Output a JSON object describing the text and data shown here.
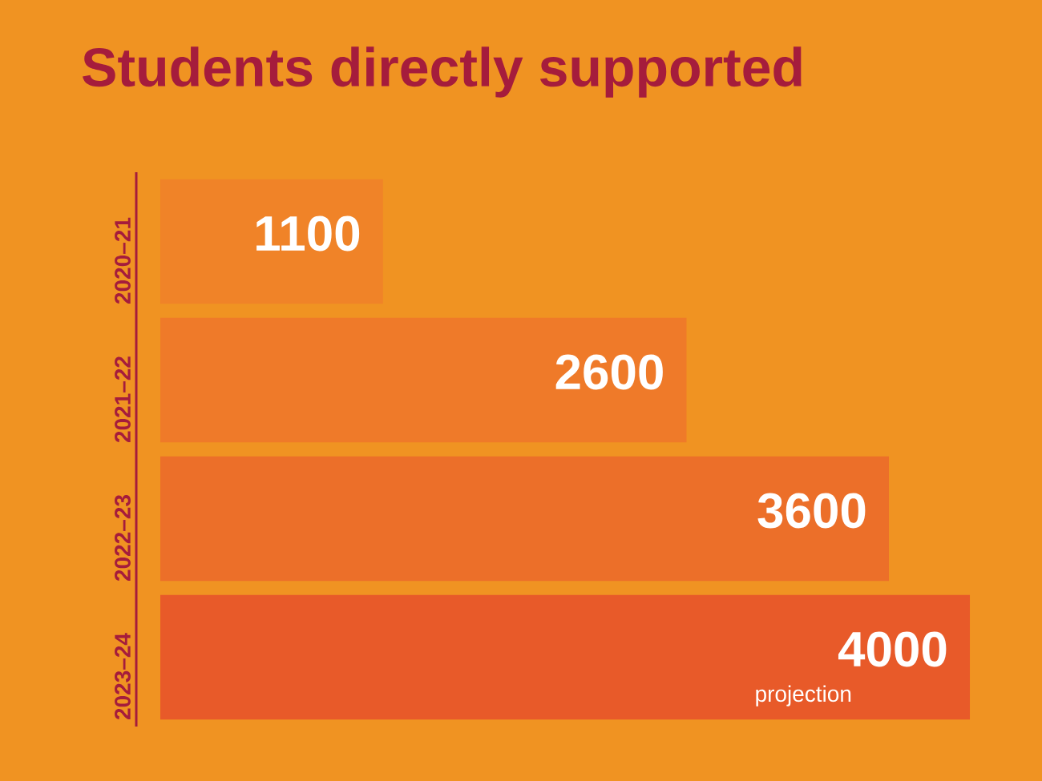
{
  "chart_data": {
    "type": "bar",
    "orientation": "horizontal",
    "title": "Students directly supported",
    "categories": [
      "2020–21",
      "2021–22",
      "2022–23",
      "2023–24"
    ],
    "values": [
      1100,
      2600,
      3600,
      4000
    ],
    "colors": [
      "#f08328",
      "#ef7a29",
      "#ec6f29",
      "#e85a29"
    ],
    "data_labels": true,
    "annotations": [
      "projection"
    ]
  }
}
